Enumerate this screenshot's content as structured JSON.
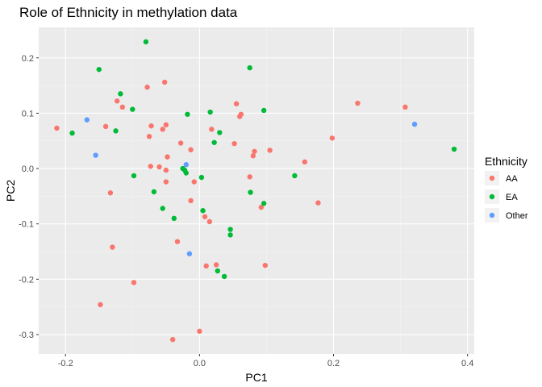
{
  "chart_data": {
    "type": "scatter",
    "title": "Role of Ethnicity in methylation data",
    "xlabel": "PC1",
    "ylabel": "PC2",
    "xlim": [
      -0.24,
      0.41
    ],
    "ylim": [
      -0.335,
      0.255
    ],
    "xticks": [
      -0.2,
      0.0,
      0.2,
      0.4
    ],
    "xtick_labels": [
      "-0.2",
      "0.0",
      "0.2",
      "0.4"
    ],
    "yticks": [
      -0.3,
      -0.2,
      -0.1,
      0.0,
      0.1,
      0.2
    ],
    "ytick_labels": [
      "-0.3",
      "-0.2",
      "-0.1",
      "0.0",
      "0.1",
      "0.2"
    ],
    "grid": true,
    "legend": {
      "title": "Ethnicity",
      "position": "right"
    },
    "series": [
      {
        "name": "AA",
        "color": "#F8766D",
        "points": [
          [
            -0.213,
            0.073
          ],
          [
            -0.14,
            0.076
          ],
          [
            -0.123,
            0.122
          ],
          [
            -0.115,
            0.111
          ],
          [
            -0.078,
            0.147
          ],
          [
            -0.052,
            0.156
          ],
          [
            -0.072,
            0.077
          ],
          [
            -0.075,
            0.058
          ],
          [
            -0.055,
            0.071
          ],
          [
            -0.05,
            0.079
          ],
          [
            -0.028,
            0.046
          ],
          [
            -0.013,
            0.034
          ],
          [
            -0.048,
            0.021
          ],
          [
            -0.073,
            0.004
          ],
          [
            -0.06,
            0.003
          ],
          [
            -0.05,
            -0.003
          ],
          [
            -0.05,
            -0.024
          ],
          [
            -0.008,
            -0.024
          ],
          [
            -0.133,
            -0.044
          ],
          [
            -0.013,
            -0.058
          ],
          [
            0.008,
            -0.087
          ],
          [
            0.015,
            -0.096
          ],
          [
            -0.033,
            -0.132
          ],
          [
            -0.13,
            -0.142
          ],
          [
            0.01,
            -0.176
          ],
          [
            0.025,
            -0.174
          ],
          [
            -0.098,
            -0.206
          ],
          [
            -0.148,
            -0.246
          ],
          [
            0.0,
            -0.294
          ],
          [
            -0.04,
            -0.309
          ],
          [
            0.018,
            0.071
          ],
          [
            0.052,
            0.045
          ],
          [
            0.055,
            0.117
          ],
          [
            0.06,
            0.094
          ],
          [
            0.062,
            0.098
          ],
          [
            0.075,
            -0.015
          ],
          [
            0.08,
            0.023
          ],
          [
            0.082,
            0.031
          ],
          [
            0.092,
            -0.07
          ],
          [
            0.098,
            -0.175
          ],
          [
            0.105,
            0.033
          ],
          [
            0.157,
            0.012
          ],
          [
            0.177,
            -0.062
          ],
          [
            0.198,
            0.055
          ],
          [
            0.236,
            0.118
          ],
          [
            0.307,
            0.111
          ]
        ]
      },
      {
        "name": "EA",
        "color": "#00BA38",
        "points": [
          [
            -0.08,
            0.229
          ],
          [
            -0.15,
            0.179
          ],
          [
            -0.118,
            0.135
          ],
          [
            -0.1,
            0.107
          ],
          [
            -0.19,
            0.064
          ],
          [
            -0.125,
            0.068
          ],
          [
            -0.098,
            -0.013
          ],
          [
            -0.068,
            -0.042
          ],
          [
            -0.055,
            -0.072
          ],
          [
            -0.038,
            -0.09
          ],
          [
            -0.025,
            0.0
          ],
          [
            -0.022,
            -0.003
          ],
          [
            -0.02,
            -0.008
          ],
          [
            -0.018,
            0.098
          ],
          [
            0.016,
            0.102
          ],
          [
            0.022,
            0.047
          ],
          [
            0.03,
            0.065
          ],
          [
            0.005,
            -0.076
          ],
          [
            0.003,
            -0.016
          ],
          [
            0.046,
            -0.11
          ],
          [
            0.046,
            -0.12
          ],
          [
            0.027,
            -0.185
          ],
          [
            0.037,
            -0.195
          ],
          [
            0.075,
            0.182
          ],
          [
            0.076,
            -0.043
          ],
          [
            0.096,
            0.105
          ],
          [
            0.096,
            -0.063
          ],
          [
            0.142,
            -0.013
          ],
          [
            0.38,
            0.035
          ]
        ]
      },
      {
        "name": "Other",
        "color": "#619CFF",
        "points": [
          [
            -0.168,
            0.088
          ],
          [
            -0.155,
            0.024
          ],
          [
            -0.02,
            0.007
          ],
          [
            -0.015,
            -0.154
          ],
          [
            0.321,
            0.08
          ]
        ]
      }
    ]
  }
}
